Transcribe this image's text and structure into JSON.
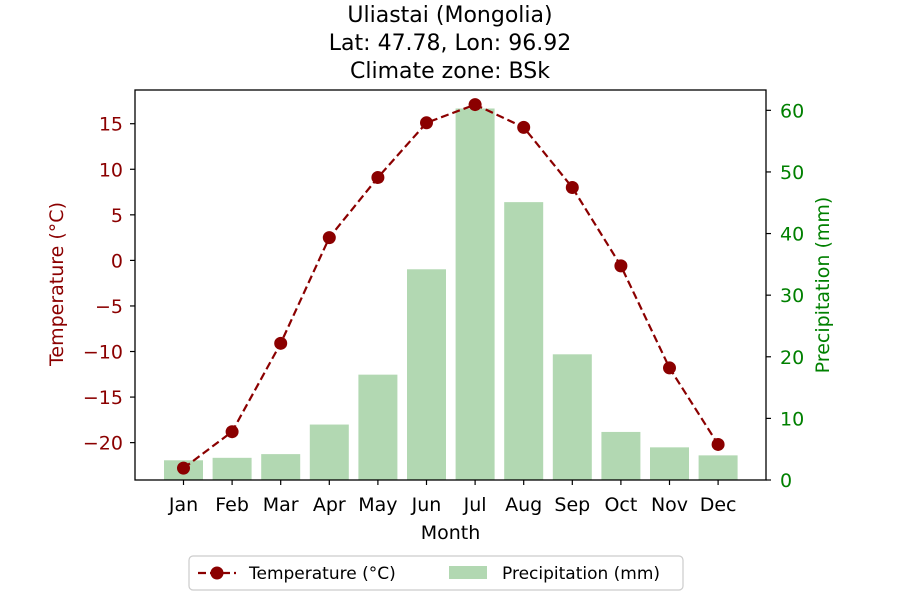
{
  "chart_data": {
    "type": "bar+line",
    "title_lines": [
      "Uliastai (Mongolia)",
      "Lat: 47.78, Lon: 96.92",
      "Climate zone: BSk"
    ],
    "xlabel": "Month",
    "categories": [
      "Jan",
      "Feb",
      "Mar",
      "Apr",
      "May",
      "Jun",
      "Jul",
      "Aug",
      "Sep",
      "Oct",
      "Nov",
      "Dec"
    ],
    "temperature": {
      "name": "Temperature (°C)",
      "axis_label": "Temperature (°C)",
      "color": "#8b0000",
      "values": [
        -22.8,
        -18.8,
        -9.1,
        2.5,
        9.1,
        15.1,
        17.1,
        14.6,
        8.0,
        -0.6,
        -11.8,
        -20.2
      ],
      "ylim": [
        -24.1,
        18.7
      ],
      "ticks": [
        -20,
        -15,
        -10,
        -5,
        0,
        5,
        10,
        15
      ],
      "tick_labels": [
        "−20",
        "−15",
        "−10",
        "−5",
        "0",
        "5",
        "10",
        "15"
      ]
    },
    "precipitation": {
      "name": "Precipitation (mm)",
      "axis_label": "Precipitation (mm)",
      "color": "#b2d8b2",
      "axis_color": "#008000",
      "values": [
        3.2,
        3.6,
        4.2,
        9.0,
        17.1,
        34.2,
        60.3,
        45.1,
        20.4,
        7.8,
        5.3,
        4.0
      ],
      "ylim": [
        0,
        63.3
      ],
      "ticks": [
        0,
        10,
        20,
        30,
        40,
        50,
        60
      ]
    },
    "legend_position": "bottom-center",
    "grid": false
  }
}
